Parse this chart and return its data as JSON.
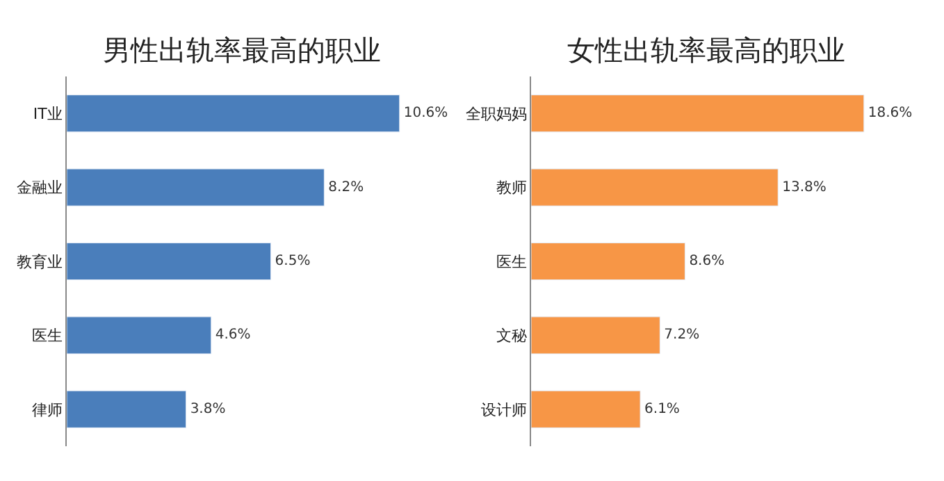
{
  "chart_data": [
    {
      "type": "bar",
      "orientation": "horizontal",
      "title": "男性出轨率最高的职业",
      "categories": [
        "IT业",
        "金融业",
        "教育业",
        "医生",
        "律师"
      ],
      "values": [
        10.6,
        8.2,
        6.5,
        4.6,
        3.8
      ],
      "value_labels": [
        "10.6%",
        "8.2%",
        "6.5%",
        "4.6%",
        "3.8%"
      ],
      "color": "#4a7ebb"
    },
    {
      "type": "bar",
      "orientation": "horizontal",
      "title": "女性出轨率最高的职业",
      "categories": [
        "全职妈妈",
        "教师",
        "医生",
        "文秘",
        "设计师"
      ],
      "values": [
        18.6,
        13.8,
        8.6,
        7.2,
        6.1
      ],
      "value_labels": [
        "18.6%",
        "13.8%",
        "8.6%",
        "7.2%",
        "6.1%"
      ],
      "color": "#f79646"
    }
  ]
}
